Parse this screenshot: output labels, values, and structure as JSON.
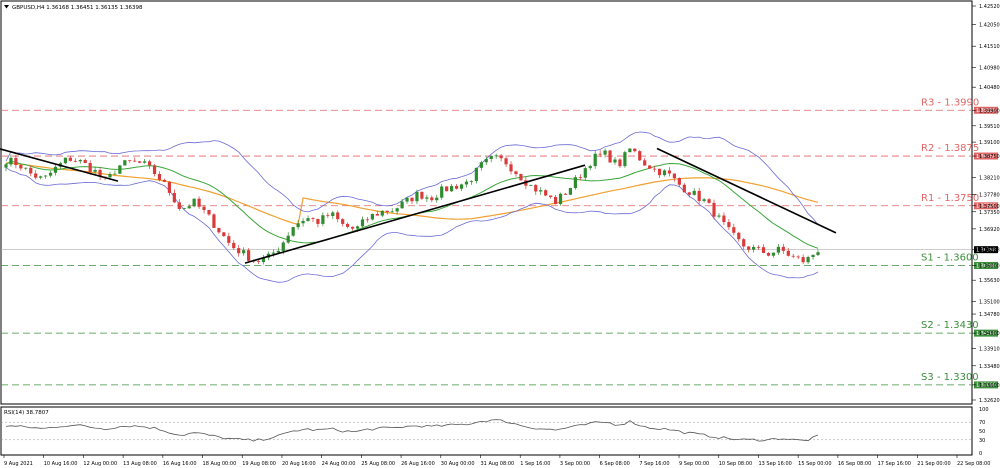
{
  "chart_data": [
    {
      "type": "candlestick",
      "header": "GBPUSD,H4  1.36168 1.36451 1.36135 1.36398",
      "last_price": "1.36398",
      "y_axis_ticks": [
        "1.42520",
        "1.42050",
        "1.41510",
        "1.40980",
        "1.40480",
        "1.39900",
        "1.39510",
        "1.39100",
        "1.38750",
        "1.38210",
        "1.37780",
        "1.37500",
        "1.37350",
        "1.36920",
        "1.36398",
        "1.36000",
        "1.35630",
        "1.35100",
        "1.34780",
        "1.34300",
        "1.33910",
        "1.33480",
        "1.33000",
        "1.32620"
      ],
      "ylim": [
        1.3262,
        1.4252
      ],
      "x_axis_labels": [
        "9 Aug 2021",
        "10 Aug 16:00",
        "12 Aug 00:00",
        "13 Aug 08:00",
        "16 Aug 16:00",
        "18 Aug 00:00",
        "19 Aug 08:00",
        "20 Aug 16:00",
        "24 Aug 00:00",
        "25 Aug 08:00",
        "26 Aug 16:00",
        "30 Aug 00:00",
        "31 Aug 08:00",
        "1 Sep 16:00",
        "3 Sep 00:00",
        "6 Sep 08:00",
        "7 Sep 16:00",
        "9 Sep 00:00",
        "10 Sep 08:00",
        "13 Sep 16:00",
        "15 Sep 00:00",
        "16 Sep 08:00",
        "17 Sep 16:00",
        "21 Sep 00:00",
        "22 Sep 08:00"
      ],
      "levels": [
        {
          "label": "R3 - 1.3990",
          "value": 1.399,
          "tag": "1.39900",
          "color": "#e06666"
        },
        {
          "label": "R2 - 1.3875",
          "value": 1.3875,
          "tag": "1.38750",
          "color": "#e06666"
        },
        {
          "label": "R1 - 1.3750",
          "value": 1.375,
          "tag": "1.37500",
          "color": "#e06666"
        },
        {
          "label": "S1 - 1.3600",
          "value": 1.36,
          "tag": "1.36000",
          "color": "#3c8f3c"
        },
        {
          "label": "S2 - 1.3430",
          "value": 1.343,
          "tag": "1.34300",
          "color": "#3c8f3c"
        },
        {
          "label": "S3 - 1.3300",
          "value": 1.33,
          "tag": "1.33000",
          "color": "#3c8f3c"
        }
      ],
      "colors": {
        "up": "#2e8b2e",
        "down": "#d93a3a",
        "bollinger": "#6b6bd6",
        "ma_green": "#3aa63a",
        "ma_orange": "#f0a030",
        "trend": "#000000"
      },
      "price_anchors": [
        1.3865,
        1.3855,
        1.383,
        1.3815,
        1.3845,
        1.387,
        1.386,
        1.384,
        1.381,
        1.385,
        1.386,
        1.3855,
        1.383,
        1.379,
        1.374,
        1.376,
        1.373,
        1.369,
        1.365,
        1.363,
        1.361,
        1.362,
        1.365,
        1.37,
        1.372,
        1.371,
        1.373,
        1.37,
        1.369,
        1.372,
        1.3735,
        1.374,
        1.376,
        1.378,
        1.377,
        1.379,
        1.38,
        1.381,
        1.385,
        1.387,
        1.386,
        1.383,
        1.38,
        1.378,
        1.376,
        1.379,
        1.383,
        1.387,
        1.388,
        1.385,
        1.3895,
        1.386,
        1.384,
        1.383,
        1.38,
        1.378,
        1.376,
        1.372,
        1.368,
        1.365,
        1.364,
        1.363,
        1.364,
        1.362,
        1.361,
        1.364
      ]
    },
    {
      "type": "line",
      "title": "RSI(14) 38.7807",
      "ylim": [
        0,
        100
      ],
      "levels": [
        30,
        70
      ],
      "y_axis_ticks": [
        "100",
        "70",
        "50",
        "30",
        "0"
      ],
      "values": [
        62,
        60,
        58,
        55,
        60,
        63,
        62,
        58,
        55,
        60,
        62,
        60,
        56,
        48,
        40,
        46,
        42,
        36,
        32,
        30,
        28,
        34,
        40,
        50,
        54,
        52,
        55,
        50,
        48,
        54,
        56,
        57,
        60,
        62,
        60,
        62,
        64,
        66,
        72,
        75,
        72,
        64,
        58,
        55,
        52,
        58,
        62,
        68,
        70,
        64,
        72,
        60,
        56,
        54,
        48,
        44,
        40,
        36,
        32,
        30,
        30,
        30,
        34,
        30,
        28,
        38
      ]
    }
  ]
}
